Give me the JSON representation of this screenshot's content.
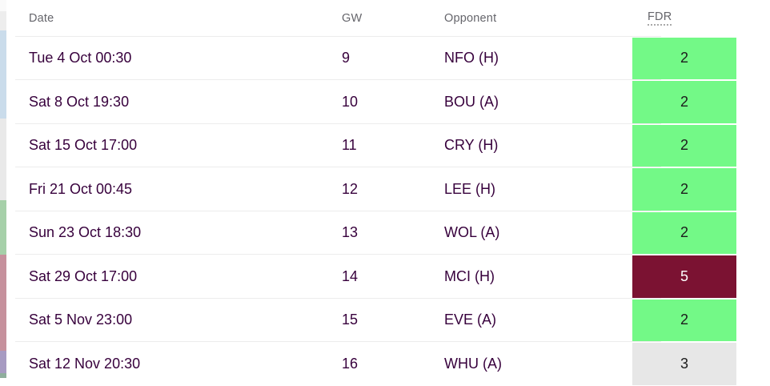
{
  "table": {
    "headers": {
      "date": "Date",
      "gw": "GW",
      "opponent": "Opponent",
      "fdr": "FDR"
    },
    "rows": [
      {
        "date": "Tue 4 Oct 00:30",
        "gw": "9",
        "opponent": "NFO (H)",
        "fdr": "2"
      },
      {
        "date": "Sat 8 Oct 19:30",
        "gw": "10",
        "opponent": "BOU (A)",
        "fdr": "2"
      },
      {
        "date": "Sat 15 Oct 17:00",
        "gw": "11",
        "opponent": "CRY (H)",
        "fdr": "2"
      },
      {
        "date": "Fri 21 Oct 00:45",
        "gw": "12",
        "opponent": "LEE (H)",
        "fdr": "2"
      },
      {
        "date": "Sun 23 Oct 18:30",
        "gw": "13",
        "opponent": "WOL (A)",
        "fdr": "2"
      },
      {
        "date": "Sat 29 Oct 17:00",
        "gw": "14",
        "opponent": "MCI (H)",
        "fdr": "5"
      },
      {
        "date": "Sat 5 Nov 23:00",
        "gw": "15",
        "opponent": "EVE (A)",
        "fdr": "2"
      },
      {
        "date": "Sat 12 Nov 20:30",
        "gw": "16",
        "opponent": "WHU (A)",
        "fdr": "3"
      }
    ]
  },
  "colors": {
    "row_text": "#37003c",
    "header_text": "#65656b",
    "separator": "#ececec",
    "fdr": {
      "2": {
        "bg": "#73f987",
        "text": "#1c1c1c"
      },
      "3": {
        "bg": "#e7e7e7",
        "text": "#1c1c1c"
      },
      "5": {
        "bg": "#7b1232",
        "text": "#ffffff"
      }
    }
  }
}
